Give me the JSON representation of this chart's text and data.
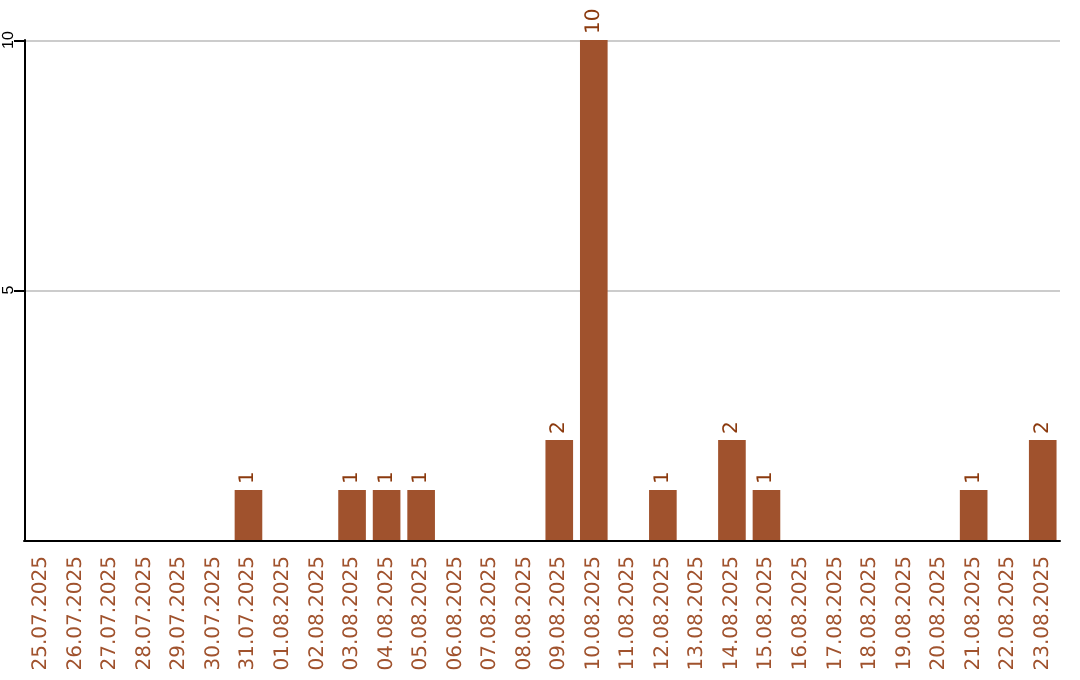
{
  "chart_data": {
    "type": "bar",
    "categories": [
      "25.07.2025",
      "26.07.2025",
      "27.07.2025",
      "28.07.2025",
      "29.07.2025",
      "30.07.2025",
      "31.07.2025",
      "01.08.2025",
      "02.08.2025",
      "03.08.2025",
      "04.08.2025",
      "05.08.2025",
      "06.08.2025",
      "07.08.2025",
      "08.08.2025",
      "09.08.2025",
      "10.08.2025",
      "11.08.2025",
      "12.08.2025",
      "13.08.2025",
      "14.08.2025",
      "15.08.2025",
      "16.08.2025",
      "17.08.2025",
      "18.08.2025",
      "19.08.2025",
      "20.08.2025",
      "21.08.2025",
      "22.08.2025",
      "23.08.2025"
    ],
    "values": [
      0,
      0,
      0,
      0,
      0,
      0,
      1,
      0,
      0,
      1,
      1,
      1,
      0,
      0,
      0,
      2,
      10,
      0,
      1,
      0,
      2,
      1,
      0,
      0,
      0,
      0,
      0,
      1,
      0,
      2
    ],
    "value_labels": [
      null,
      null,
      null,
      null,
      null,
      null,
      "1",
      null,
      null,
      "1",
      "1",
      "1",
      null,
      null,
      null,
      "2",
      "10",
      null,
      "1",
      null,
      "2",
      "1",
      null,
      null,
      null,
      null,
      null,
      "1",
      null,
      "2"
    ],
    "color": "#a0522d",
    "ylim": [
      0,
      10
    ],
    "yticks": [
      5,
      10
    ],
    "grid": "y"
  }
}
